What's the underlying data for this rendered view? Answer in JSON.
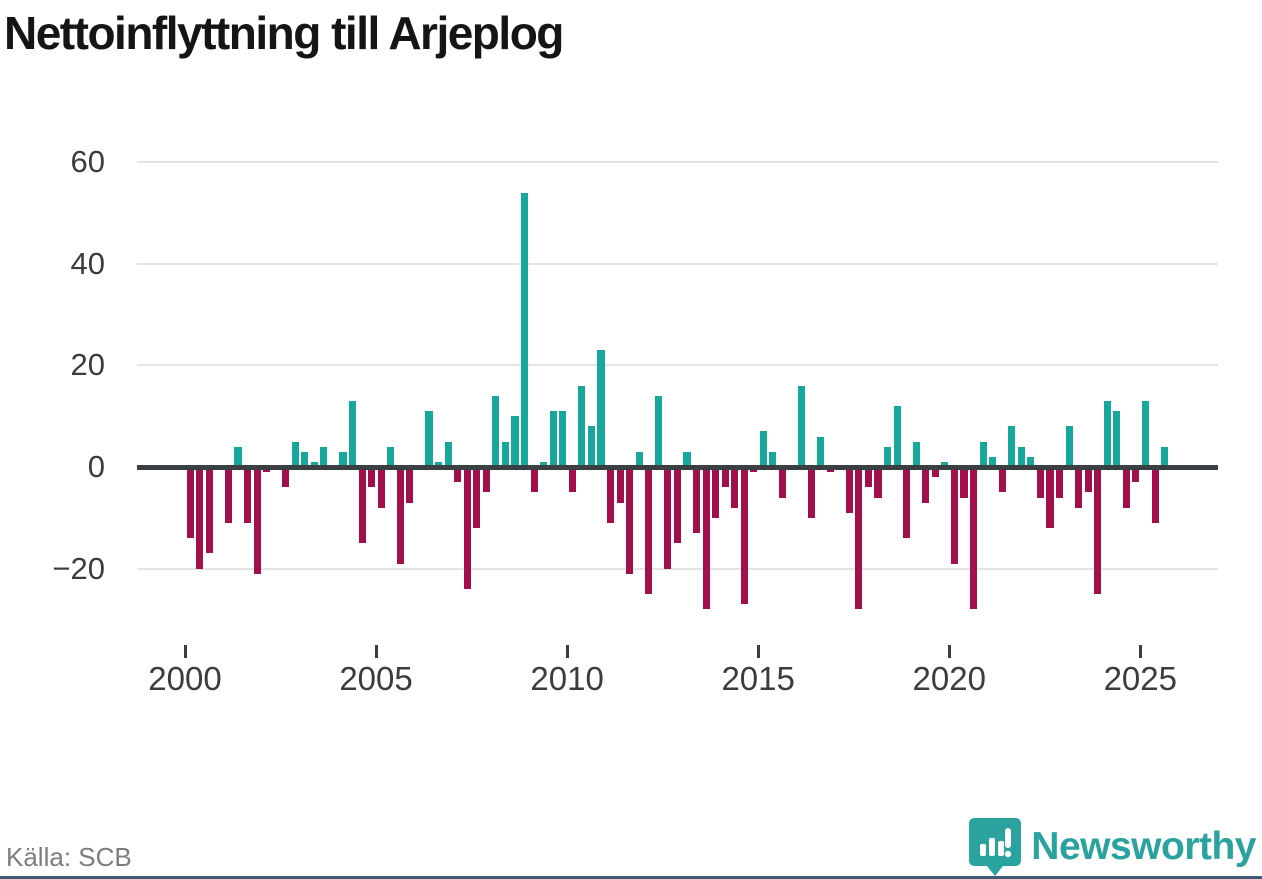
{
  "header": {
    "title": "Nettoinflyttning till Arjeplog"
  },
  "footer": {
    "source": "Källa: SCB",
    "brand_name": "Newsworthy",
    "brand_icon": "newsworthy-pin-barchart-icon"
  },
  "colors": {
    "positive_bar": "#17a79d",
    "negative_bar": "#a1104a",
    "zero_line": "#3a3f44",
    "gridline": "#e4e4e4",
    "axis_text": "#3c3c3c",
    "source_text": "#7d7d7d",
    "brand_teal": "#2aa29d",
    "bottom_bar": "#3d5a77"
  },
  "chart_data": {
    "type": "bar",
    "title": "Nettoinflyttning till Arjeplog",
    "frequency": "quarterly",
    "start_period": "2000 Q1",
    "end_period": "2025 Q3",
    "xlabel": "",
    "ylabel": "",
    "ylim": [
      -30,
      60
    ],
    "grid": true,
    "legend": false,
    "yticks": [
      60,
      40,
      20,
      0,
      -20
    ],
    "xticks": [
      2000,
      2005,
      2010,
      2015,
      2020,
      2025
    ],
    "values": [
      -14,
      -20,
      -17,
      0,
      -11,
      4,
      -11,
      -21,
      -1,
      0,
      -4,
      5,
      3,
      1,
      4,
      0,
      3,
      13,
      -15,
      -4,
      -8,
      4,
      -19,
      -7,
      0,
      11,
      1,
      5,
      -3,
      -24,
      -12,
      -5,
      14,
      5,
      10,
      54,
      -5,
      1,
      11,
      11,
      -5,
      16,
      8,
      23,
      -11,
      -7,
      -21,
      3,
      -25,
      14,
      -20,
      -15,
      3,
      -13,
      -28,
      -10,
      -4,
      -8,
      -27,
      -1,
      7,
      3,
      -6,
      0,
      16,
      -10,
      6,
      -1,
      0,
      -9,
      -28,
      -4,
      -6,
      4,
      12,
      -14,
      5,
      -7,
      -2,
      1,
      -19,
      -6,
      -28,
      5,
      2,
      -5,
      8,
      4,
      2,
      -6,
      -12,
      -6,
      8,
      -8,
      -5,
      -25,
      13,
      11,
      -8,
      -3,
      13,
      -11,
      4
    ]
  }
}
